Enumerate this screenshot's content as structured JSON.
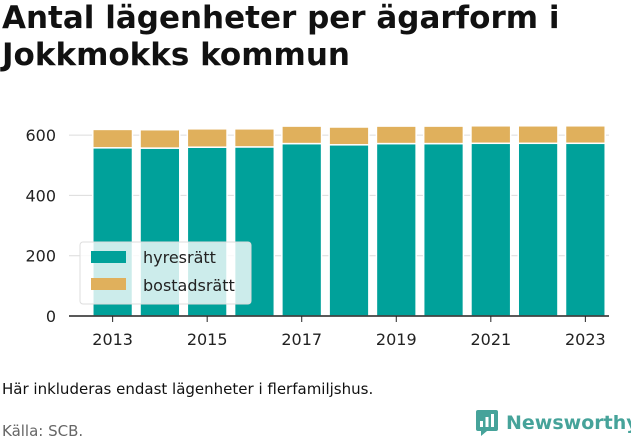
{
  "chart_data": {
    "type": "bar",
    "stacked": true,
    "title": "Antal lägenheter per ägarform i Jokkmokks kommun",
    "categories": [
      "2013",
      "2014",
      "2015",
      "2016",
      "2017",
      "2018",
      "2019",
      "2020",
      "2021",
      "2022",
      "2023"
    ],
    "x_tick_labels": [
      "2013",
      "2015",
      "2017",
      "2019",
      "2021",
      "2023"
    ],
    "series": [
      {
        "name": "hyresrätt",
        "color": "#00a19a",
        "values": [
          558,
          557,
          560,
          561,
          572,
          568,
          572,
          572,
          573,
          573,
          573
        ]
      },
      {
        "name": "bostadsrätt",
        "color": "#e0b05c",
        "values": [
          61,
          61,
          61,
          60,
          58,
          59,
          58,
          58,
          58,
          58,
          58
        ]
      }
    ],
    "ylim": [
      0,
      700
    ],
    "yticks": [
      0,
      200,
      400,
      600
    ],
    "xlabel": "",
    "ylabel": "",
    "grid": true,
    "legend_position": "bottom-left"
  },
  "note": "Här inkluderas endast lägenheter i flerfamiljshus.",
  "source": "Källa: SCB.",
  "brand": {
    "name": "Newsworthy",
    "icon": "bar-chart-bubble-icon",
    "color": "#46a39a"
  }
}
